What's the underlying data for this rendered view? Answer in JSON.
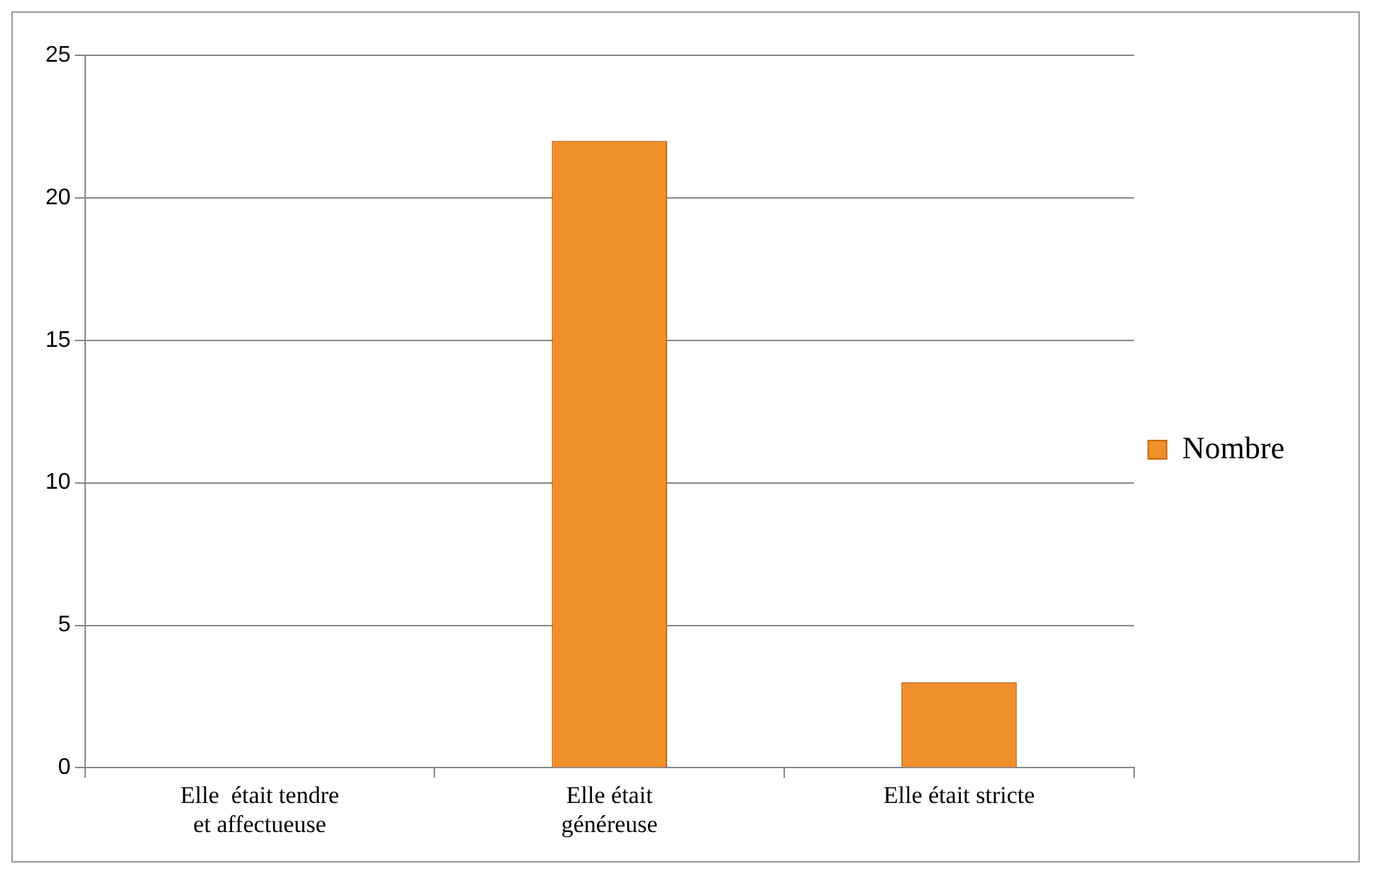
{
  "chart_data": {
    "type": "bar",
    "categories": [
      "Elle  était tendre et affectueuse",
      "Elle était généreuse",
      "Elle était stricte"
    ],
    "series": [
      {
        "name": "Nombre",
        "color": "#f0902a",
        "values": [
          0,
          22,
          3
        ]
      }
    ],
    "ylim": [
      0,
      25
    ],
    "yticks": [
      0,
      5,
      10,
      15,
      20,
      25
    ],
    "grid": "y",
    "legend": "right"
  }
}
